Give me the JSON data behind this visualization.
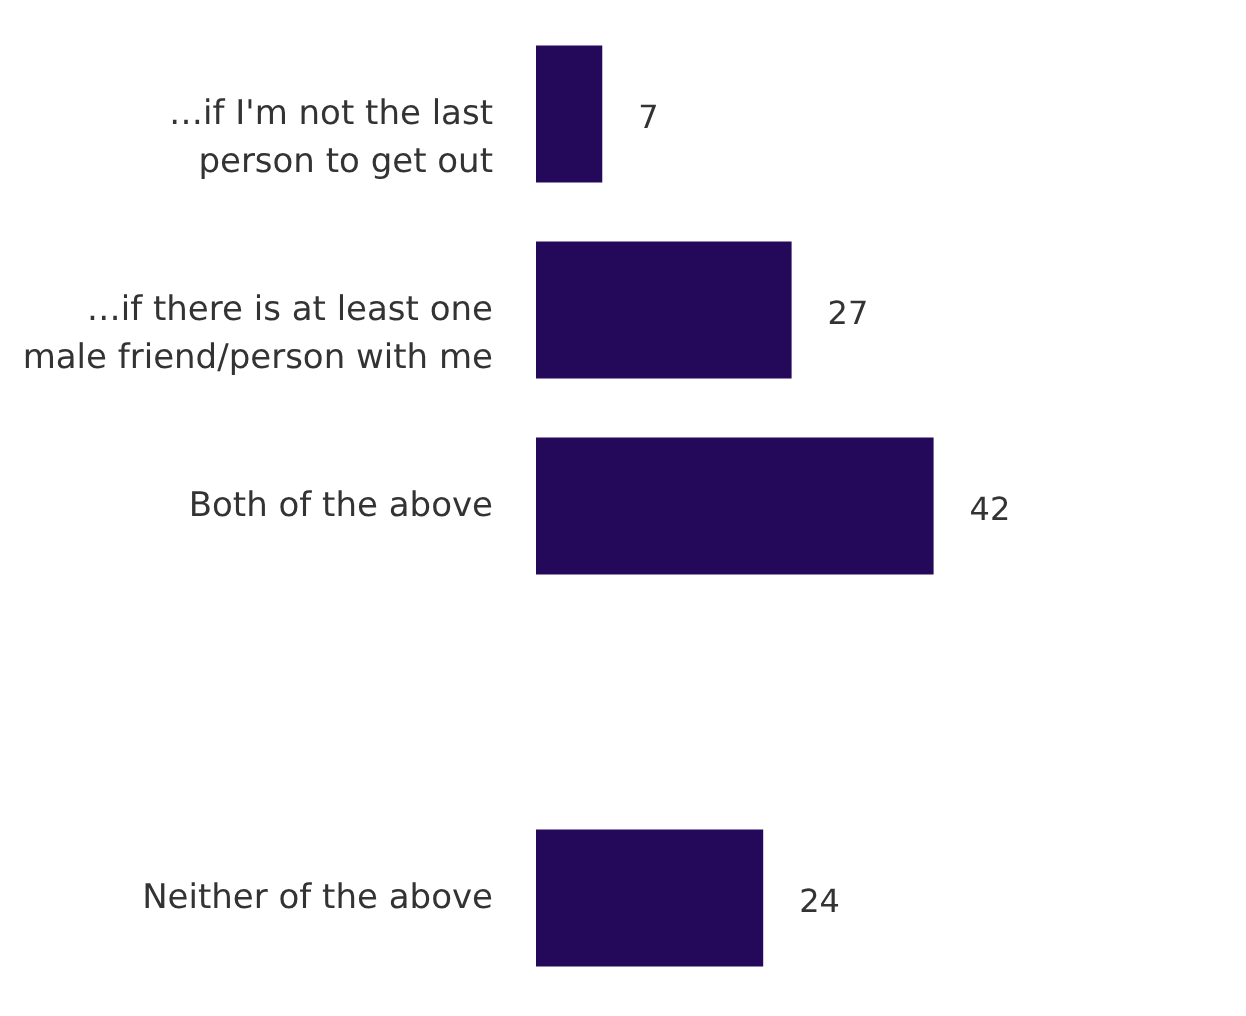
{
  "chart_data": {
    "type": "bar",
    "orientation": "horizontal",
    "categories": [
      "…if I'm not the last person to get out",
      "…if there is at least one male friend/person with me",
      "Both of the above",
      null,
      "Neither of the above"
    ],
    "values": [
      7,
      27,
      42,
      null,
      24
    ],
    "color": "#24085a",
    "data_labels": true
  }
}
